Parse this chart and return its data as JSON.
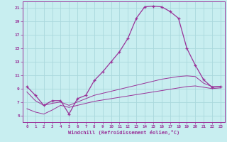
{
  "xlabel": "Windchill (Refroidissement éolien,°C)",
  "bg_color": "#c8eef0",
  "grid_color": "#aad8dc",
  "line_color": "#993399",
  "x_hours": [
    0,
    1,
    2,
    3,
    4,
    5,
    6,
    7,
    8,
    9,
    10,
    11,
    12,
    13,
    14,
    15,
    16,
    17,
    18,
    19,
    20,
    21,
    22,
    23
  ],
  "temp_line": [
    9.3,
    8.0,
    6.5,
    7.2,
    7.2,
    5.2,
    7.5,
    8.0,
    10.2,
    11.5,
    13.0,
    14.5,
    16.5,
    19.5,
    21.2,
    21.3,
    21.2,
    20.5,
    19.5,
    15.0,
    12.5,
    10.3,
    9.2,
    9.3
  ],
  "feel_line1": [
    8.5,
    7.2,
    6.5,
    6.8,
    7.0,
    6.5,
    7.0,
    7.5,
    8.0,
    8.3,
    8.6,
    8.9,
    9.2,
    9.5,
    9.8,
    10.1,
    10.4,
    10.6,
    10.8,
    10.9,
    10.8,
    9.8,
    9.3,
    9.3
  ],
  "feel_line2": [
    6.0,
    5.5,
    5.2,
    5.8,
    6.5,
    6.2,
    6.5,
    6.8,
    7.1,
    7.3,
    7.5,
    7.7,
    7.9,
    8.1,
    8.3,
    8.5,
    8.7,
    8.9,
    9.1,
    9.3,
    9.4,
    9.2,
    9.0,
    9.1
  ],
  "ylim": [
    4,
    22
  ],
  "yticks": [
    5,
    7,
    9,
    11,
    13,
    15,
    17,
    19,
    21
  ],
  "xticks": [
    0,
    1,
    2,
    3,
    4,
    5,
    6,
    7,
    8,
    9,
    10,
    11,
    12,
    13,
    14,
    15,
    16,
    17,
    18,
    19,
    20,
    21,
    22,
    23
  ],
  "figwidth": 3.2,
  "figheight": 2.0,
  "dpi": 100
}
